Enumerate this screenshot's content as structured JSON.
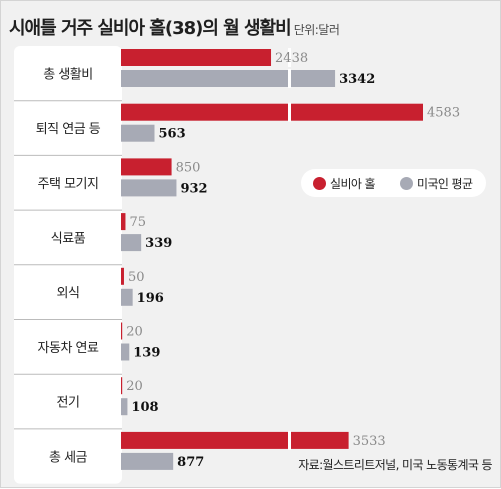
{
  "title": "시애틀 거주 실비아 홀(38)의 월 생활비",
  "unit_label": "단위:달러",
  "source": "자료:월스트리트저널, 미국 노동통계국 등",
  "colors": {
    "hall": "#c8202f",
    "us_avg": "#a7aab5",
    "label_box": "#ffffff",
    "background": "#f1f1f1"
  },
  "chart_data": {
    "type": "bar",
    "orientation": "horizontal",
    "categories": [
      "총 생활비",
      "퇴직 연금 등",
      "주택 모기지",
      "식료품",
      "외식",
      "자동차 연료",
      "전기",
      "총 세금"
    ],
    "series": [
      {
        "name": "실비아 홀",
        "values": [
          2438,
          4583,
          850,
          75,
          50,
          20,
          20,
          3533
        ]
      },
      {
        "name": "미국인 평균",
        "values": [
          3342,
          563,
          932,
          339,
          196,
          139,
          108,
          877
        ]
      }
    ],
    "axis_break": {
      "above": 2000,
      "display_from": 4100
    },
    "legend_position": "right, near top",
    "grid": false
  }
}
